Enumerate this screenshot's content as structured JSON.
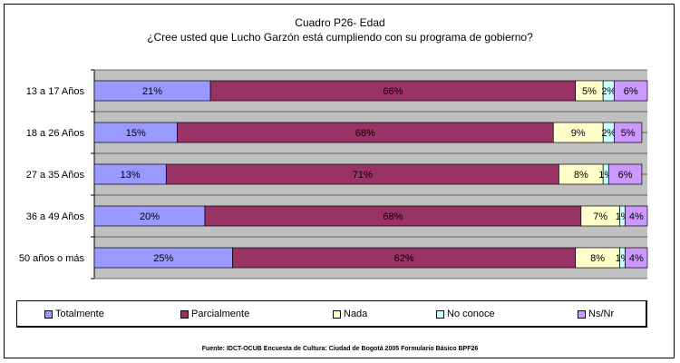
{
  "chart_data": {
    "type": "bar",
    "orientation": "horizontal",
    "stacked": "percent",
    "title": "Cuadro P26- Edad",
    "subtitle": "¿Cree usted que Lucho Garzón está cumpliendo con su programa de gobierno?",
    "categories": [
      "13 a 17 Años",
      "18 a 26 Años",
      "27 a 35 Años",
      "36 a 49 Años",
      "50 años o más"
    ],
    "series": [
      {
        "name": "Totalmente",
        "color": "#9999FF",
        "values": [
          21,
          15,
          13,
          20,
          25
        ]
      },
      {
        "name": "Parcialmente",
        "color": "#993366",
        "values": [
          66,
          68,
          71,
          68,
          62
        ]
      },
      {
        "name": "Nada",
        "color": "#FFFFCC",
        "values": [
          5,
          9,
          8,
          7,
          8
        ]
      },
      {
        "name": "No conoce",
        "color": "#CCFFFF",
        "values": [
          2,
          2,
          1,
          1,
          1
        ]
      },
      {
        "name": "Ns/Nr",
        "color": "#CC99FF",
        "values": [
          6,
          5,
          6,
          4,
          4
        ]
      }
    ],
    "xlim": [
      0,
      100
    ],
    "grid": true,
    "legend_position": "bottom",
    "source": "Fuente: IDCT-OCUB Encuesta de Cultura: Ciudad de Bogotá 2005 Formulario Básico BPF26"
  }
}
